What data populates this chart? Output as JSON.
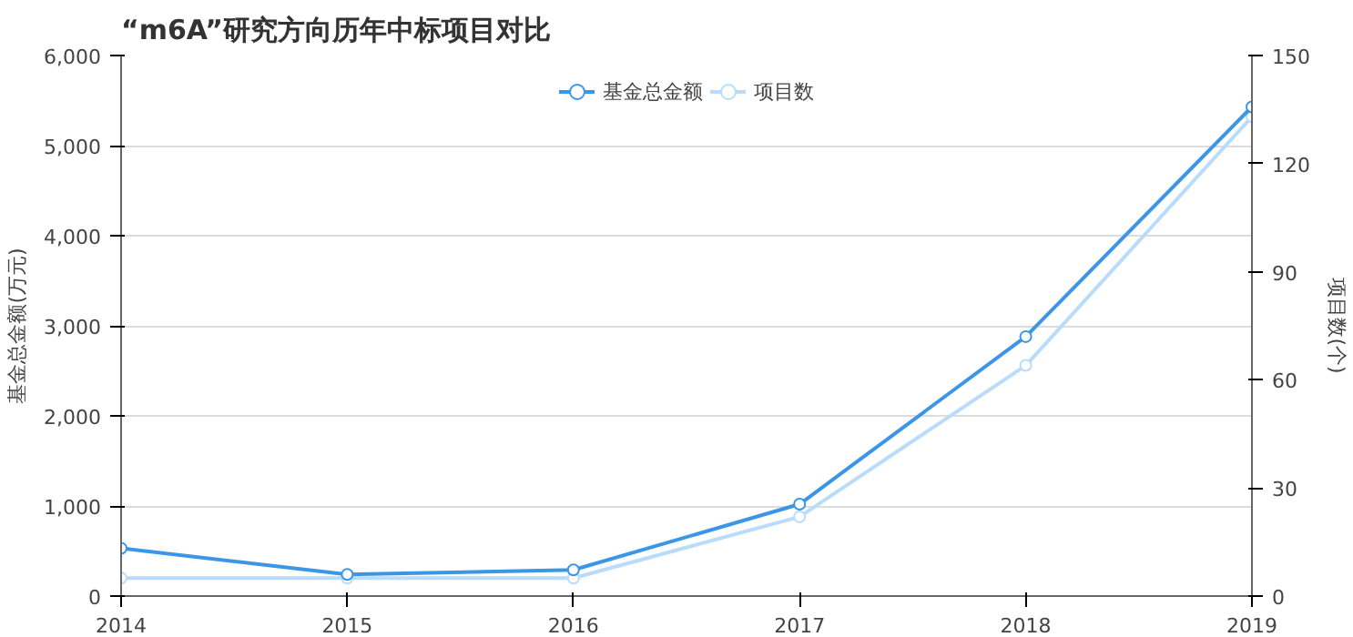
{
  "chart_data": {
    "type": "line",
    "title": "“m6A”研究方向历年中标项目对比",
    "categories": [
      "2014",
      "2015",
      "2016",
      "2017",
      "2018",
      "2019"
    ],
    "ylabel": "基金总金额(万元)",
    "y2label": "项目数(个)",
    "ylim": [
      0,
      6000
    ],
    "yticks": [
      0,
      {
        "value": 1000,
        "label": "1,000"
      },
      {
        "value": 2000,
        "label": "2,000"
      },
      {
        "value": 3000,
        "label": "3,000"
      },
      {
        "value": 4000,
        "label": "4,000"
      },
      {
        "value": 5000,
        "label": "5,000"
      },
      {
        "value": 6000,
        "label": "6,000"
      }
    ],
    "y2lim": [
      0,
      150
    ],
    "y2ticks": [
      0,
      30,
      60,
      90,
      120,
      150
    ],
    "series": [
      {
        "name": "基金总金额",
        "color": "#3c96e8",
        "values": [
          530,
          240,
          290,
          1020,
          2880,
          5430
        ]
      },
      {
        "name": "项目数",
        "color": "#b9dcfa",
        "axis": "y2",
        "values": [
          5,
          5,
          5,
          22,
          64,
          133
        ]
      }
    ],
    "grid": "y",
    "legend": "top",
    "marker": "circle",
    "line_style": "solid"
  }
}
